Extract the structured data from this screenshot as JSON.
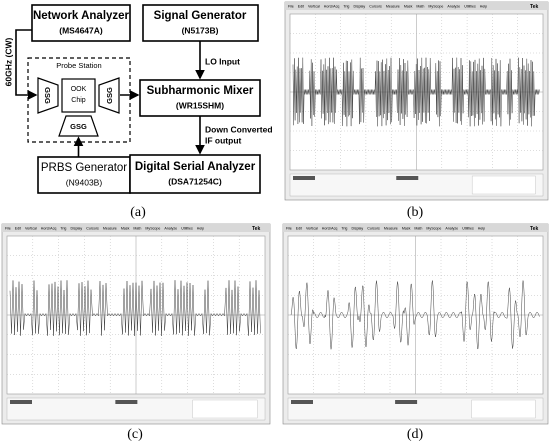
{
  "diagram": {
    "network_analyzer": {
      "name": "Network Analyzer",
      "model": "(MS4647A)"
    },
    "signal_generator": {
      "name": "Signal Generator",
      "model": "(N5173B)"
    },
    "mixer": {
      "name": "Subharmonic Mixer",
      "model": "(WR15SHM)"
    },
    "prbs": {
      "name": "PRBS Generator",
      "model": "(N9403B)"
    },
    "dsa": {
      "name": "Digital Serial Analyzer",
      "model": "(DSA71254C)"
    },
    "probe_station": "Probe Station",
    "chip": [
      "OOK",
      "Chip"
    ],
    "gsg": "GSG",
    "cw_label": "60GHz (CW)",
    "lo_label": "LO Input",
    "if_label": [
      "Down Converted",
      "IF output"
    ]
  },
  "scope_menu": [
    "File",
    "Edit",
    "Vertical",
    "Horiz/Acq",
    "Trig",
    "Display",
    "Cursors",
    "Measure",
    "Mask",
    "Math",
    "MyScope",
    "Analyze",
    "Utilities",
    "Help"
  ],
  "scope_brand": "Tek",
  "panel_labels": [
    "(a)",
    "(b)",
    "(c)",
    "(d)"
  ]
}
